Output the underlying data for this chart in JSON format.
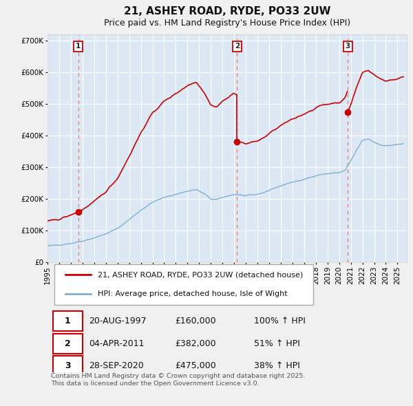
{
  "title": "21, ASHEY ROAD, RYDE, PO33 2UW",
  "subtitle": "Price paid vs. HM Land Registry's House Price Index (HPI)",
  "ylim": [
    0,
    720000
  ],
  "yticks": [
    0,
    100000,
    200000,
    300000,
    400000,
    500000,
    600000,
    700000
  ],
  "ytick_labels": [
    "£0",
    "£100K",
    "£200K",
    "£300K",
    "£400K",
    "£500K",
    "£600K",
    "£700K"
  ],
  "xlim_start": 1995.0,
  "xlim_end": 2025.8,
  "background_color": "#dce9f5",
  "fig_color": "#f0f0f0",
  "grid_color": "#ffffff",
  "red_line_color": "#cc0000",
  "blue_line_color": "#7ab0d4",
  "vline_color": "#ff5555",
  "sale_marker_color": "#cc0000",
  "transaction_dates": [
    1997.637,
    2011.253,
    2020.745
  ],
  "transaction_prices": [
    160000,
    382000,
    475000
  ],
  "legend_label_red": "21, ASHEY ROAD, RYDE, PO33 2UW (detached house)",
  "legend_label_blue": "HPI: Average price, detached house, Isle of Wight",
  "table_data": [
    [
      "1",
      "20-AUG-1997",
      "£160,000",
      "100% ↑ HPI"
    ],
    [
      "2",
      "04-APR-2011",
      "£382,000",
      "51% ↑ HPI"
    ],
    [
      "3",
      "28-SEP-2020",
      "£475,000",
      "38% ↑ HPI"
    ]
  ],
  "footer": "Contains HM Land Registry data © Crown copyright and database right 2025.\nThis data is licensed under the Open Government Licence v3.0.",
  "title_fontsize": 11,
  "subtitle_fontsize": 9,
  "tick_fontsize": 7.5,
  "legend_fontsize": 8
}
